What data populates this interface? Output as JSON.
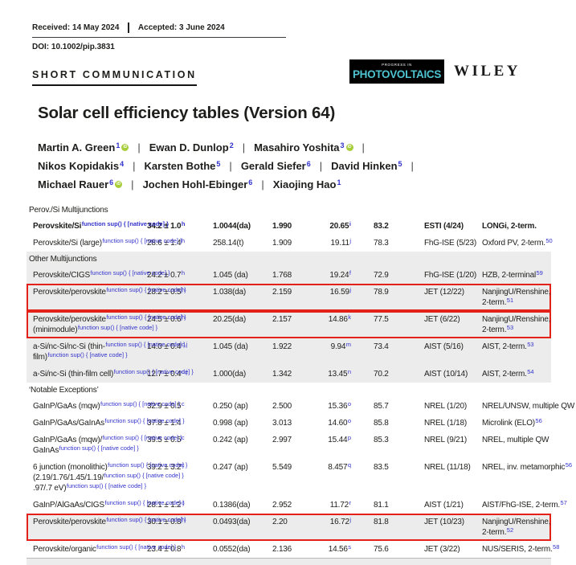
{
  "header": {
    "received": "Received: 14 May 2024",
    "accepted": "Accepted: 3 June 2024",
    "doi": "DOI: 10.1002/pip.3831",
    "article_type": "SHORT COMMUNICATION",
    "journal_logo": {
      "top_text": "PROGRESS IN",
      "main_text": "PHOTOVOLTAICS"
    },
    "publisher": "WILEY"
  },
  "title": "Solar cell efficiency tables (Version 64)",
  "authors": {
    "separator": "|",
    "lines": [
      {
        "trailing_sep": true,
        "names": [
          {
            "name": "Martin A. Green",
            "sup": "1",
            "orcid": true
          },
          {
            "name": "Ewan D. Dunlop",
            "sup": "2",
            "orcid": false
          },
          {
            "name": "Masahiro Yoshita",
            "sup": "3",
            "orcid": true
          }
        ]
      },
      {
        "trailing_sep": true,
        "names": [
          {
            "name": "Nikos Kopidakis",
            "sup": "4",
            "orcid": false
          },
          {
            "name": "Karsten Bothe",
            "sup": "5",
            "orcid": false
          },
          {
            "name": "Gerald Siefer",
            "sup": "6",
            "orcid": false
          },
          {
            "name": "David Hinken",
            "sup": "5",
            "orcid": false
          }
        ]
      },
      {
        "trailing_sep": false,
        "names": [
          {
            "name": "Michael Rauer",
            "sup": "6",
            "orcid": true
          },
          {
            "name": "Jochen Hohl-Ebinger",
            "sup": "6",
            "orcid": false
          },
          {
            "name": "Xiaojing Hao",
            "sup": "1",
            "orcid": false
          }
        ]
      }
    ]
  },
  "colors": {
    "highlight_box": "#e32119",
    "section_shading": "#ececec",
    "footnote_link": "#3232cc",
    "logo_cyan": "#4fc4d1",
    "orcid_green": "#a8cd3a"
  },
  "table": {
    "sections": [
      {
        "header": "Perov./Si Multijunctions",
        "shaded": false,
        "rows": [
          {
            "bold": true,
            "boxed": false,
            "shaded": false,
            "name": [
              "Perovskite/Si"
            ],
            "eff": "34.2 ± 1.0",
            "eff_sup": "h",
            "area": "1.0044(da)",
            "voc": "1.990",
            "jsc": "20.65",
            "jsc_sup": "i",
            "ff": "83.2",
            "centre": "ESTI (4/24)",
            "desc": [
              {
                "text": "LONGi, 2-term.",
                "sup": ""
              }
            ]
          },
          {
            "bold": false,
            "boxed": false,
            "shaded": false,
            "name": [
              "Perovskite/Si (large)"
            ],
            "eff": "28.6 ± 1.4",
            "eff_sup": "h",
            "area": "258.14(t)",
            "voc": "1.909",
            "jsc": "19.11",
            "jsc_sup": "j",
            "ff": "78.3",
            "centre": "FhG-ISE (5/23)",
            "desc": [
              {
                "text": "Oxford PV, 2-term.",
                "sup": "50"
              }
            ]
          }
        ]
      },
      {
        "header": "Other Multijunctions",
        "shaded": true,
        "rows": [
          {
            "bold": false,
            "boxed": false,
            "shaded": false,
            "name": [
              "Perovskite/CIGS"
            ],
            "eff": "24.2 ± 0.7",
            "eff_sup": "h",
            "area": "1.045 (da)",
            "voc": "1.768",
            "jsc": "19.24",
            "jsc_sup": "f",
            "ff": "72.9",
            "centre": "FhG-ISE (1/20)",
            "desc": [
              {
                "text": "HZB, 2-terminal",
                "sup": "59"
              }
            ]
          },
          {
            "bold": false,
            "boxed": true,
            "shaded": false,
            "name": [
              "Perovskite/perovskite"
            ],
            "eff": "28.2 ± 0.5",
            "eff_sup": "h",
            "area": "1.038(da)",
            "voc": "2.159",
            "jsc": "16.59",
            "jsc_sup": "j",
            "ff": "78.9",
            "centre": "JET (12/22)",
            "desc": [
              {
                "text": "NanjingU/Renshine,",
                "sup": ""
              },
              {
                "text": "2-term.",
                "sup": "51"
              }
            ]
          },
          {
            "bold": false,
            "boxed": true,
            "shaded": false,
            "name": [
              "Perovskite/perovskite",
              "(minimodule)"
            ],
            "eff": "24.5 ± 0.6",
            "eff_sup": "h",
            "area": "20.25(da)",
            "voc": "2.157",
            "jsc": "14.86",
            "jsc_sup": "k",
            "ff": "77.5",
            "centre": "JET (6/22)",
            "desc": [
              {
                "text": "NanjingU/Renshine,",
                "sup": ""
              },
              {
                "text": "2-term.",
                "sup": "53"
              }
            ]
          },
          {
            "bold": false,
            "boxed": false,
            "shaded": false,
            "name": [
              "a-Si/nc-Si/nc-Si (thin-",
              "film)"
            ],
            "eff": "14.0 ± 0.4",
            "eff_sup": "c,j",
            "area": "1.045 (da)",
            "voc": "1.922",
            "jsc": "9.94",
            "jsc_sup": "m",
            "ff": "73.4",
            "centre": "AIST (5/16)",
            "desc": [
              {
                "text": "AIST, 2-term.",
                "sup": "53"
              }
            ]
          },
          {
            "bold": false,
            "boxed": false,
            "shaded": false,
            "name": [
              "a-Si/nc-Si (thin-film cell)"
            ],
            "eff": "12.7 ± 0.4",
            "eff_sup": "c,j",
            "area": "1.000(da)",
            "voc": "1.342",
            "jsc": "13.45",
            "jsc_sup": "n",
            "ff": "70.2",
            "centre": "AIST (10/14)",
            "desc": [
              {
                "text": "AIST, 2-term.",
                "sup": "54"
              }
            ]
          }
        ]
      },
      {
        "header": "‘Notable Exceptions’",
        "shaded": false,
        "rows": [
          {
            "bold": false,
            "boxed": false,
            "shaded": false,
            "name": [
              "GaInP/GaAs (mqw)"
            ],
            "eff": "32.9 ± 0.5",
            "eff_sup": "c",
            "area": "0.250 (ap)",
            "voc": "2.500",
            "jsc": "15.36",
            "jsc_sup": "o",
            "ff": "85.7",
            "centre": "NREL (1/20)",
            "desc": [
              {
                "text": "NREL/UNSW, multiple QW",
                "sup": ""
              }
            ]
          },
          {
            "bold": false,
            "boxed": false,
            "shaded": false,
            "name": [
              "GaInP/GaAs/GaInAs"
            ],
            "eff": "37.8 ± 1.4",
            "eff_sup": "",
            "area": "0.998 (ap)",
            "voc": "3.013",
            "jsc": "14.60",
            "jsc_sup": "o",
            "ff": "85.8",
            "centre": "NREL (1/18)",
            "desc": [
              {
                "text": "Microlink (ELO)",
                "sup": "56"
              }
            ]
          },
          {
            "bold": false,
            "boxed": false,
            "shaded": false,
            "name": [
              "GaInP/GaAs (mqw)/",
              "GaInAs"
            ],
            "eff": "39.5 ± 0.5",
            "eff_sup": "c",
            "area": "0.242 (ap)",
            "voc": "2.997",
            "jsc": "15.44",
            "jsc_sup": "p",
            "ff": "85.3",
            "centre": "NREL (9/21)",
            "desc": [
              {
                "text": "NREL, multiple QW",
                "sup": ""
              }
            ]
          },
          {
            "bold": false,
            "boxed": false,
            "shaded": false,
            "name": [
              "6 junction (monolithic)",
              "(2.19/1.76/1.45/1.19/",
              ".97/.7 eV)"
            ],
            "eff": "39.2 ± 3.2",
            "eff_sup": "c",
            "area": "0.247 (ap)",
            "voc": "5.549",
            "jsc": "8.457",
            "jsc_sup": "q",
            "ff": "83.5",
            "centre": "NREL (11/18)",
            "desc": [
              {
                "text": "NREL, inv. metamorphic",
                "sup": "56"
              }
            ]
          },
          {
            "bold": false,
            "boxed": false,
            "shaded": false,
            "name": [
              "GaInP/AlGaAs/CIGS"
            ],
            "eff": "28.1 ± 1.2",
            "eff_sup": "c",
            "area": "0.1386(da)",
            "voc": "2.952",
            "jsc": "11.72",
            "jsc_sup": "r",
            "ff": "81.1",
            "centre": "AIST (1/21)",
            "desc": [
              {
                "text": "AIST/FhG-ISE, 2-term.",
                "sup": "57"
              }
            ]
          },
          {
            "bold": false,
            "boxed": true,
            "shaded": true,
            "name": [
              "Perovskite/perovskite"
            ],
            "eff": "30.1 ± 0.8",
            "eff_sup": "h",
            "area": "0.0493(da)",
            "voc": "2.20",
            "jsc": "16.72",
            "jsc_sup": "j",
            "ff": "81.8",
            "centre": "JET (10/23)",
            "desc": [
              {
                "text": "NanjingU/Renshine,",
                "sup": ""
              },
              {
                "text": "2-term.",
                "sup": "52"
              }
            ]
          },
          {
            "bold": false,
            "boxed": false,
            "shaded": false,
            "name": [
              "Perovskite/organic"
            ],
            "eff": "23.4 ± 0.8",
            "eff_sup": "h",
            "area": "0.0552(da)",
            "voc": "2.136",
            "jsc": "14.56",
            "jsc_sup": "s",
            "ff": "75.6",
            "centre": "JET (3/22)",
            "desc": [
              {
                "text": "NUS/SERIS, 2-term.",
                "sup": "58"
              }
            ]
          }
        ]
      }
    ]
  }
}
